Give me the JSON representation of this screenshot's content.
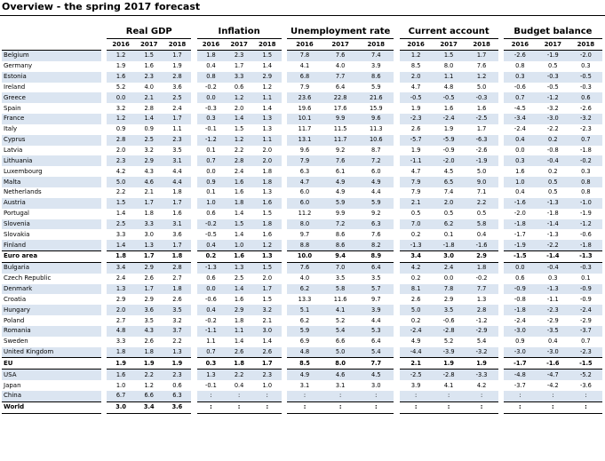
{
  "title": "Overview - the spring 2017 forecast",
  "groups": [
    {
      "label": "Real GDP"
    },
    {
      "label": "Inflation"
    },
    {
      "label": "Unemployment rate"
    },
    {
      "label": "Current account"
    },
    {
      "label": "Budget balance"
    }
  ],
  "years": [
    "2016",
    "2017",
    "2018"
  ],
  "rows": [
    {
      "country": "Belgium",
      "style": "blue",
      "v": [
        "1.2",
        "1.5",
        "1.7",
        "1.8",
        "2.3",
        "1.5",
        "7.8",
        "7.6",
        "7.4",
        "1.2",
        "1.5",
        "1.7",
        "-2.6",
        "-1.9",
        "-2.0"
      ]
    },
    {
      "country": "Germany",
      "style": "white",
      "v": [
        "1.9",
        "1.6",
        "1.9",
        "0.4",
        "1.7",
        "1.4",
        "4.1",
        "4.0",
        "3.9",
        "8.5",
        "8.0",
        "7.6",
        "0.8",
        "0.5",
        "0.3"
      ]
    },
    {
      "country": "Estonia",
      "style": "blue",
      "v": [
        "1.6",
        "2.3",
        "2.8",
        "0.8",
        "3.3",
        "2.9",
        "6.8",
        "7.7",
        "8.6",
        "2.0",
        "1.1",
        "1.2",
        "0.3",
        "-0.3",
        "-0.5"
      ]
    },
    {
      "country": "Ireland",
      "style": "white",
      "v": [
        "5.2",
        "4.0",
        "3.6",
        "-0.2",
        "0.6",
        "1.2",
        "7.9",
        "6.4",
        "5.9",
        "4.7",
        "4.8",
        "5.0",
        "-0.6",
        "-0.5",
        "-0.3"
      ]
    },
    {
      "country": "Greece",
      "style": "blue",
      "v": [
        "0.0",
        "2.1",
        "2.5",
        "0.0",
        "1.2",
        "1.1",
        "23.6",
        "22.8",
        "21.6",
        "-0.5",
        "-0.5",
        "-0.3",
        "0.7",
        "-1.2",
        "0.6"
      ]
    },
    {
      "country": "Spain",
      "style": "white",
      "v": [
        "3.2",
        "2.8",
        "2.4",
        "-0.3",
        "2.0",
        "1.4",
        "19.6",
        "17.6",
        "15.9",
        "1.9",
        "1.6",
        "1.6",
        "-4.5",
        "-3.2",
        "-2.6"
      ]
    },
    {
      "country": "France",
      "style": "blue",
      "v": [
        "1.2",
        "1.4",
        "1.7",
        "0.3",
        "1.4",
        "1.3",
        "10.1",
        "9.9",
        "9.6",
        "-2.3",
        "-2.4",
        "-2.5",
        "-3.4",
        "-3.0",
        "-3.2"
      ]
    },
    {
      "country": "Italy",
      "style": "white",
      "v": [
        "0.9",
        "0.9",
        "1.1",
        "-0.1",
        "1.5",
        "1.3",
        "11.7",
        "11.5",
        "11.3",
        "2.6",
        "1.9",
        "1.7",
        "-2.4",
        "-2.2",
        "-2.3"
      ]
    },
    {
      "country": "Cyprus",
      "style": "blue",
      "v": [
        "2.8",
        "2.5",
        "2.3",
        "-1.2",
        "1.2",
        "1.1",
        "13.1",
        "11.7",
        "10.6",
        "-5.7",
        "-5.9",
        "-6.3",
        "0.4",
        "0.2",
        "0.7"
      ]
    },
    {
      "country": "Latvia",
      "style": "white",
      "v": [
        "2.0",
        "3.2",
        "3.5",
        "0.1",
        "2.2",
        "2.0",
        "9.6",
        "9.2",
        "8.7",
        "1.9",
        "-0.9",
        "-2.6",
        "0.0",
        "-0.8",
        "-1.8"
      ]
    },
    {
      "country": "Lithuania",
      "style": "blue",
      "v": [
        "2.3",
        "2.9",
        "3.1",
        "0.7",
        "2.8",
        "2.0",
        "7.9",
        "7.6",
        "7.2",
        "-1.1",
        "-2.0",
        "-1.9",
        "0.3",
        "-0.4",
        "-0.2"
      ]
    },
    {
      "country": "Luxembourg",
      "style": "white",
      "v": [
        "4.2",
        "4.3",
        "4.4",
        "0.0",
        "2.4",
        "1.8",
        "6.3",
        "6.1",
        "6.0",
        "4.7",
        "4.5",
        "5.0",
        "1.6",
        "0.2",
        "0.3"
      ]
    },
    {
      "country": "Malta",
      "style": "blue",
      "v": [
        "5.0",
        "4.6",
        "4.4",
        "0.9",
        "1.6",
        "1.8",
        "4.7",
        "4.9",
        "4.9",
        "7.9",
        "6.5",
        "9.0",
        "1.0",
        "0.5",
        "0.8"
      ]
    },
    {
      "country": "Netherlands",
      "style": "white",
      "v": [
        "2.2",
        "2.1",
        "1.8",
        "0.1",
        "1.6",
        "1.3",
        "6.0",
        "4.9",
        "4.4",
        "7.9",
        "7.4",
        "7.1",
        "0.4",
        "0.5",
        "0.8"
      ]
    },
    {
      "country": "Austria",
      "style": "blue",
      "v": [
        "1.5",
        "1.7",
        "1.7",
        "1.0",
        "1.8",
        "1.6",
        "6.0",
        "5.9",
        "5.9",
        "2.1",
        "2.0",
        "2.2",
        "-1.6",
        "-1.3",
        "-1.0"
      ]
    },
    {
      "country": "Portugal",
      "style": "white",
      "v": [
        "1.4",
        "1.8",
        "1.6",
        "0.6",
        "1.4",
        "1.5",
        "11.2",
        "9.9",
        "9.2",
        "0.5",
        "0.5",
        "0.5",
        "-2.0",
        "-1.8",
        "-1.9"
      ]
    },
    {
      "country": "Slovenia",
      "style": "blue",
      "v": [
        "2.5",
        "3.3",
        "3.1",
        "-0.2",
        "1.5",
        "1.8",
        "8.0",
        "7.2",
        "6.3",
        "7.0",
        "6.2",
        "5.8",
        "-1.8",
        "-1.4",
        "-1.2"
      ]
    },
    {
      "country": "Slovakia",
      "style": "white",
      "v": [
        "3.3",
        "3.0",
        "3.6",
        "-0.5",
        "1.4",
        "1.6",
        "9.7",
        "8.6",
        "7.6",
        "0.2",
        "0.1",
        "0.4",
        "-1.7",
        "-1.3",
        "-0.6"
      ]
    },
    {
      "country": "Finland",
      "style": "blue",
      "v": [
        "1.4",
        "1.3",
        "1.7",
        "0.4",
        "1.0",
        "1.2",
        "8.8",
        "8.6",
        "8.2",
        "-1.3",
        "-1.8",
        "-1.6",
        "-1.9",
        "-2.2",
        "-1.8"
      ]
    },
    {
      "country": "Euro area",
      "style": "agg",
      "v": [
        "1.8",
        "1.7",
        "1.8",
        "0.2",
        "1.6",
        "1.3",
        "10.0",
        "9.4",
        "8.9",
        "3.4",
        "3.0",
        "2.9",
        "-1.5",
        "-1.4",
        "-1.3"
      ]
    },
    {
      "country": "Bulgaria",
      "style": "blue",
      "v": [
        "3.4",
        "2.9",
        "2.8",
        "-1.3",
        "1.3",
        "1.5",
        "7.6",
        "7.0",
        "6.4",
        "4.2",
        "2.4",
        "1.8",
        "0.0",
        "-0.4",
        "-0.3"
      ]
    },
    {
      "country": "Czech Republic",
      "style": "white",
      "v": [
        "2.4",
        "2.6",
        "2.7",
        "0.6",
        "2.5",
        "2.0",
        "4.0",
        "3.5",
        "3.5",
        "0.2",
        "0.0",
        "-0.2",
        "0.6",
        "0.3",
        "0.1"
      ]
    },
    {
      "country": "Denmark",
      "style": "blue",
      "v": [
        "1.3",
        "1.7",
        "1.8",
        "0.0",
        "1.4",
        "1.7",
        "6.2",
        "5.8",
        "5.7",
        "8.1",
        "7.8",
        "7.7",
        "-0.9",
        "-1.3",
        "-0.9"
      ]
    },
    {
      "country": "Croatia",
      "style": "white",
      "v": [
        "2.9",
        "2.9",
        "2.6",
        "-0.6",
        "1.6",
        "1.5",
        "13.3",
        "11.6",
        "9.7",
        "2.6",
        "2.9",
        "1.3",
        "-0.8",
        "-1.1",
        "-0.9"
      ]
    },
    {
      "country": "Hungary",
      "style": "blue",
      "v": [
        "2.0",
        "3.6",
        "3.5",
        "0.4",
        "2.9",
        "3.2",
        "5.1",
        "4.1",
        "3.9",
        "5.0",
        "3.5",
        "2.8",
        "-1.8",
        "-2.3",
        "-2.4"
      ]
    },
    {
      "country": "Poland",
      "style": "white",
      "v": [
        "2.7",
        "3.5",
        "3.2",
        "-0.2",
        "1.8",
        "2.1",
        "6.2",
        "5.2",
        "4.4",
        "0.2",
        "-0.6",
        "-1.2",
        "-2.4",
        "-2.9",
        "-2.9"
      ]
    },
    {
      "country": "Romania",
      "style": "blue",
      "v": [
        "4.8",
        "4.3",
        "3.7",
        "-1.1",
        "1.1",
        "3.0",
        "5.9",
        "5.4",
        "5.3",
        "-2.4",
        "-2.8",
        "-2.9",
        "-3.0",
        "-3.5",
        "-3.7"
      ]
    },
    {
      "country": "Sweden",
      "style": "white",
      "v": [
        "3.3",
        "2.6",
        "2.2",
        "1.1",
        "1.4",
        "1.4",
        "6.9",
        "6.6",
        "6.4",
        "4.9",
        "5.2",
        "5.4",
        "0.9",
        "0.4",
        "0.7"
      ]
    },
    {
      "country": "United Kingdom",
      "style": "blue",
      "v": [
        "1.8",
        "1.8",
        "1.3",
        "0.7",
        "2.6",
        "2.6",
        "4.8",
        "5.0",
        "5.4",
        "-4.4",
        "-3.9",
        "-3.2",
        "-3.0",
        "-3.0",
        "-2.3"
      ]
    },
    {
      "country": "EU",
      "style": "agg",
      "v": [
        "1.9",
        "1.9",
        "1.9",
        "0.3",
        "1.8",
        "1.7",
        "8.5",
        "8.0",
        "7.7",
        "2.1",
        "1.9",
        "1.9",
        "-1.7",
        "-1.6",
        "-1.5"
      ]
    },
    {
      "country": "USA",
      "style": "blue",
      "v": [
        "1.6",
        "2.2",
        "2.3",
        "1.3",
        "2.2",
        "2.3",
        "4.9",
        "4.6",
        "4.5",
        "-2.5",
        "-2.8",
        "-3.3",
        "-4.8",
        "-4.7",
        "-5.2"
      ]
    },
    {
      "country": "Japan",
      "style": "white",
      "v": [
        "1.0",
        "1.2",
        "0.6",
        "-0.1",
        "0.4",
        "1.0",
        "3.1",
        "3.1",
        "3.0",
        "3.9",
        "4.1",
        "4.2",
        "-3.7",
        "-4.2",
        "-3.6"
      ]
    },
    {
      "country": "China",
      "style": "blue",
      "v": [
        "6.7",
        "6.6",
        "6.3",
        ":",
        ":",
        ":",
        ":",
        ":",
        ":",
        ":",
        ":",
        ":",
        ":",
        ":",
        ":"
      ]
    },
    {
      "country": "World",
      "style": "world",
      "v": [
        "3.0",
        "3.4",
        "3.6",
        ":",
        ":",
        ":",
        ":",
        ":",
        ":",
        ":",
        ":",
        ":",
        ":",
        ":",
        ":"
      ]
    }
  ]
}
